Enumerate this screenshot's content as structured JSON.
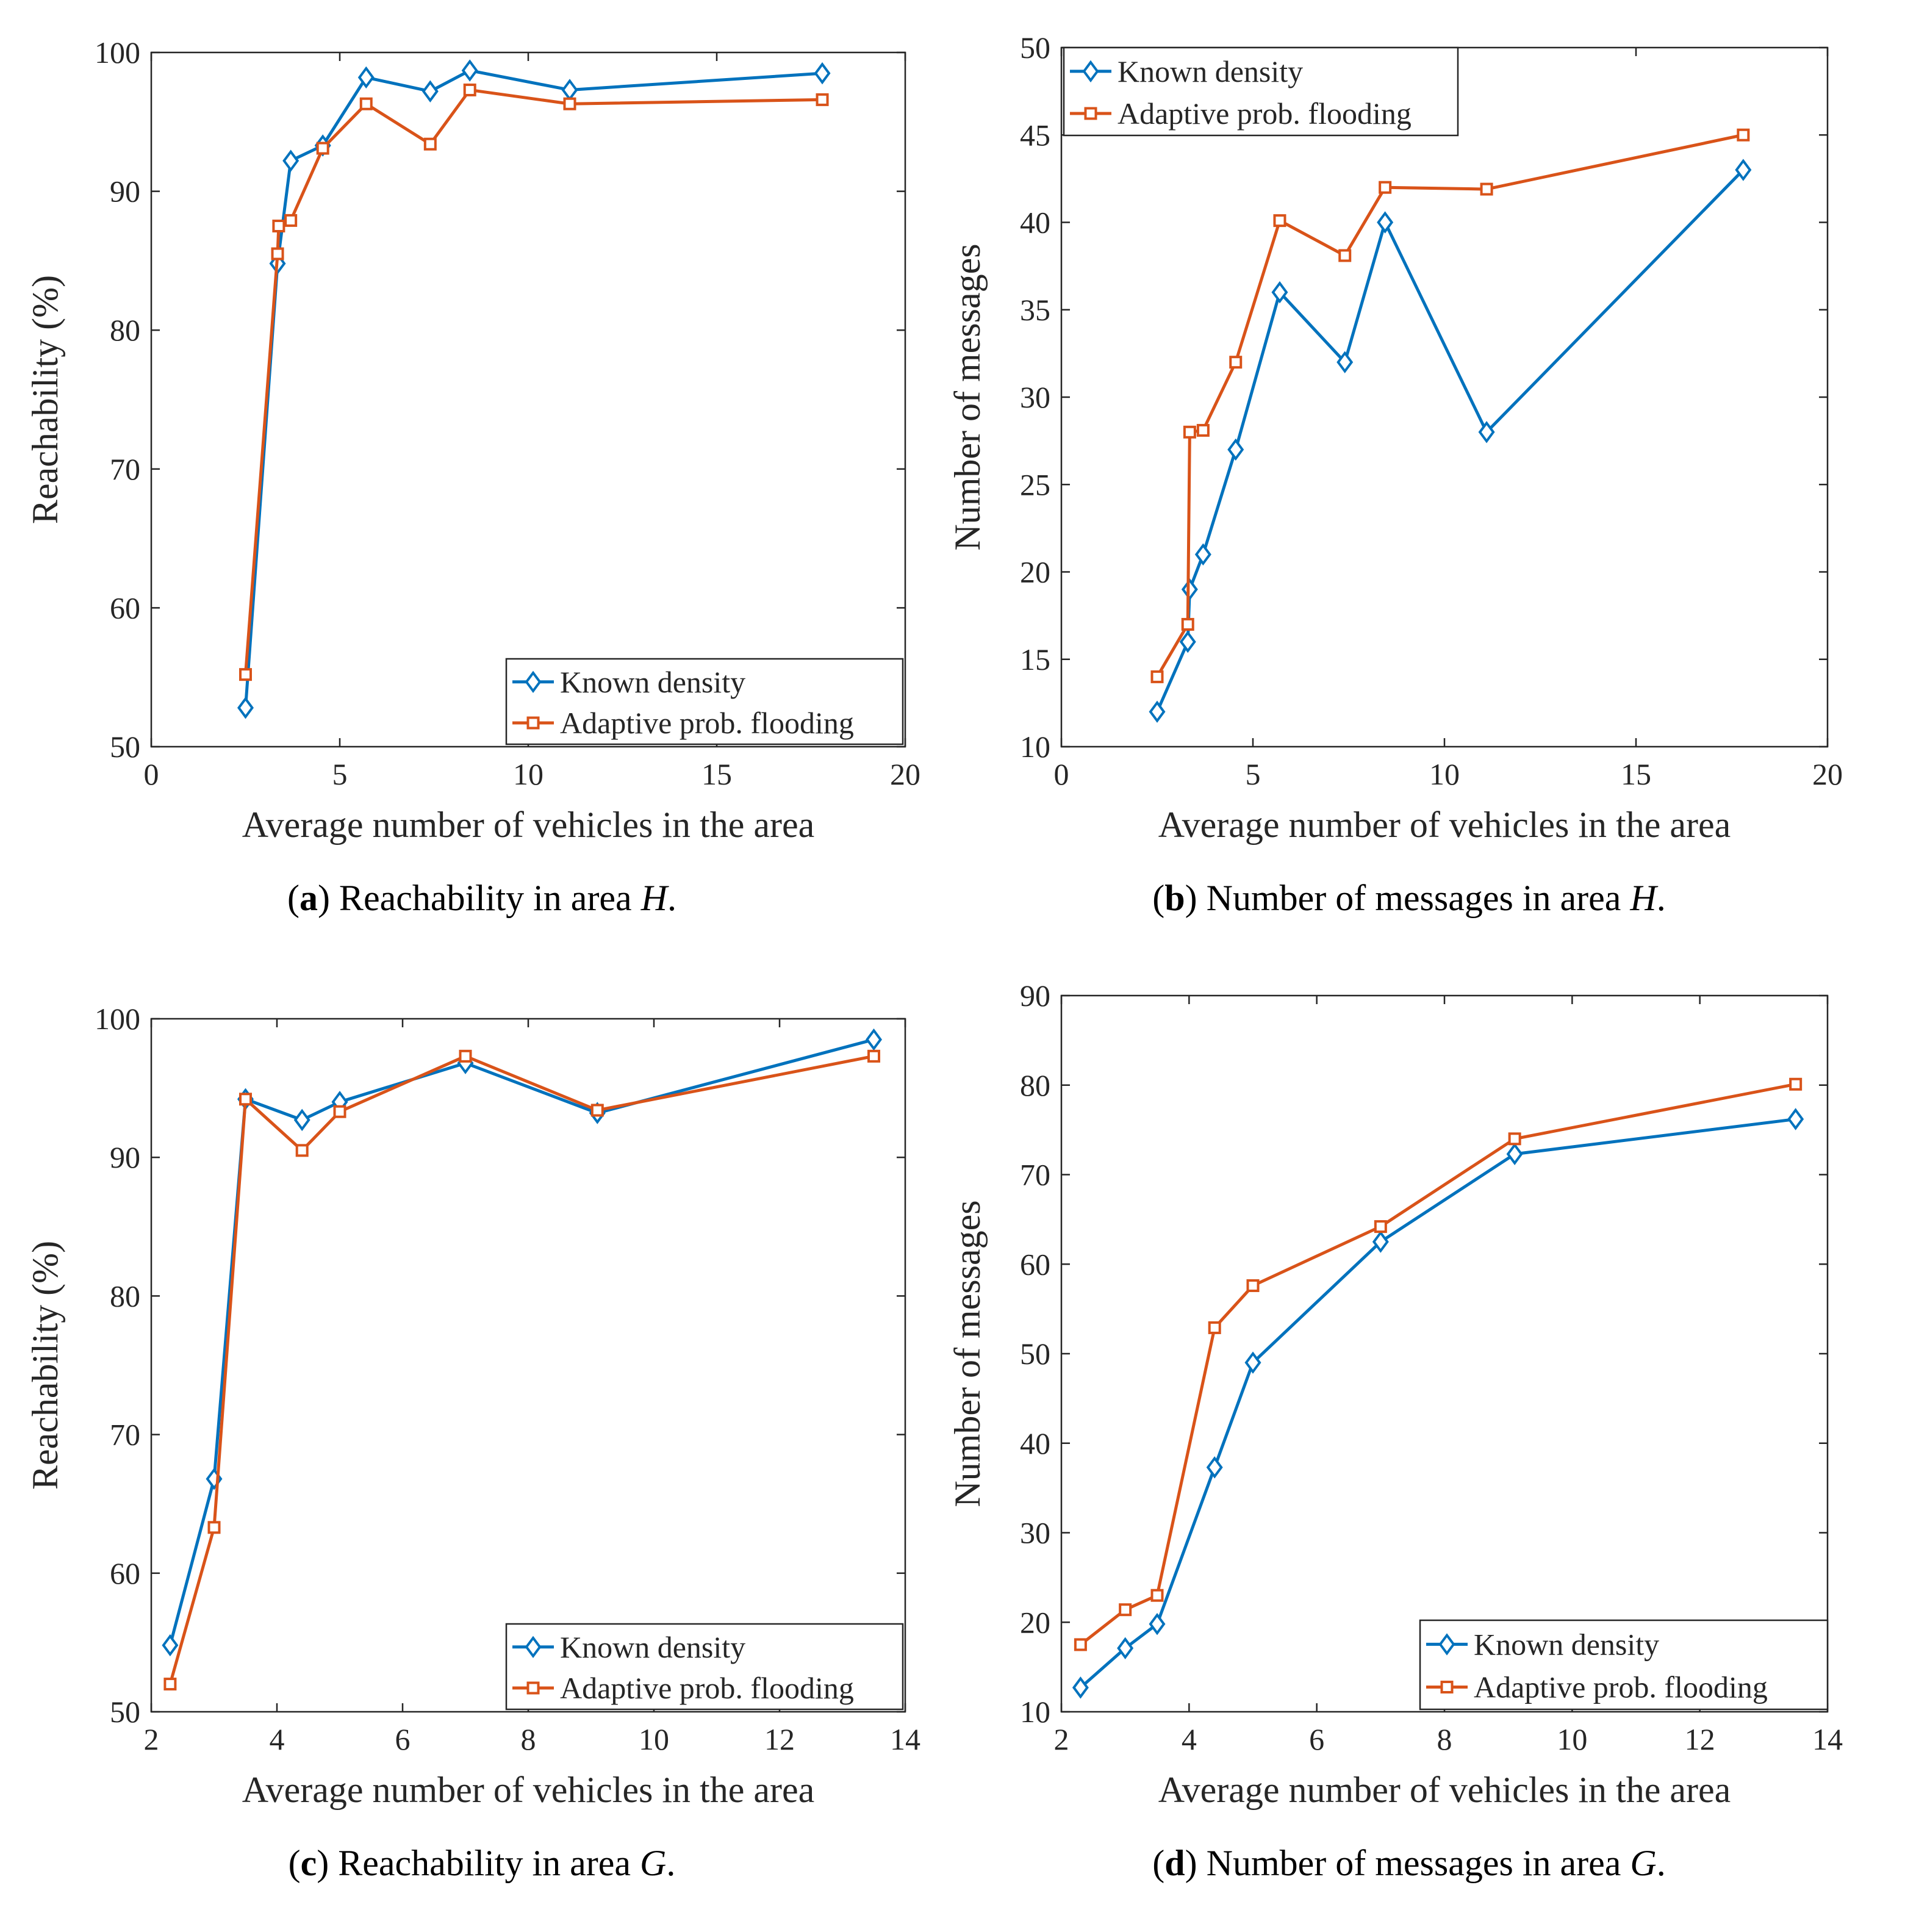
{
  "colors": {
    "known": "#0072BD",
    "adaptive": "#D95319",
    "axis": "#262626"
  },
  "chart_data": [
    {
      "id": "a",
      "type": "line",
      "caption": {
        "letter": "a",
        "text": "Reachability in area",
        "var": "H"
      },
      "xlabel": "Average number of vehicles in the area",
      "ylabel": "Reachability (%)",
      "xlim": [
        0,
        20
      ],
      "ylim": [
        50,
        100
      ],
      "xticks": [
        0,
        5,
        10,
        15,
        20
      ],
      "yticks": [
        50,
        60,
        70,
        80,
        90,
        100
      ],
      "xtick_labels": [
        "0",
        "5",
        "10",
        "15",
        "20"
      ],
      "ytick_labels": [
        "50",
        "60",
        "70",
        "80",
        "90",
        "100"
      ],
      "legend_position": "bottom-right",
      "series": [
        {
          "name": "Known density",
          "key": "known",
          "marker": "diamond",
          "x": [
            2.5,
            3.35,
            3.7,
            4.55,
            5.7,
            7.4,
            8.45,
            11.1,
            17.8
          ],
          "y": [
            52.8,
            84.8,
            92.2,
            93.3,
            98.2,
            97.2,
            98.7,
            97.3,
            98.5
          ]
        },
        {
          "name": "Adaptive prob. flooding",
          "key": "adaptive",
          "marker": "square",
          "x": [
            2.5,
            3.35,
            3.38,
            3.7,
            4.55,
            5.7,
            7.4,
            8.45,
            11.1,
            17.8
          ],
          "y": [
            55.2,
            85.5,
            87.5,
            87.9,
            93.1,
            96.3,
            93.4,
            97.3,
            96.3,
            96.6
          ]
        }
      ]
    },
    {
      "id": "b",
      "type": "line",
      "caption": {
        "letter": "b",
        "text": "Number of messages in area",
        "var": "H"
      },
      "xlabel": "Average number of vehicles in the area",
      "ylabel": "Number of messages",
      "xlim": [
        0,
        20
      ],
      "ylim": [
        10,
        50
      ],
      "xticks": [
        0,
        5,
        10,
        15,
        20
      ],
      "yticks": [
        10,
        15,
        20,
        25,
        30,
        35,
        40,
        45,
        50
      ],
      "xtick_labels": [
        "0",
        "5",
        "10",
        "15",
        "20"
      ],
      "ytick_labels": [
        "10",
        "15",
        "20",
        "25",
        "30",
        "35",
        "40",
        "45",
        "50"
      ],
      "legend_position": "top-left",
      "series": [
        {
          "name": "Known density",
          "key": "known",
          "marker": "diamond",
          "x": [
            2.5,
            3.3,
            3.35,
            3.7,
            4.55,
            5.7,
            7.4,
            8.45,
            11.1,
            17.8
          ],
          "y": [
            12,
            16,
            19,
            21,
            27,
            36,
            32,
            40,
            28,
            43
          ]
        },
        {
          "name": "Adaptive prob. flooding",
          "key": "adaptive",
          "marker": "square",
          "x": [
            2.5,
            3.3,
            3.35,
            3.7,
            4.55,
            5.7,
            7.4,
            8.45,
            11.1,
            17.8
          ],
          "y": [
            14,
            17,
            28,
            28.1,
            32,
            40.1,
            38.1,
            42,
            41.9,
            45
          ]
        }
      ]
    },
    {
      "id": "c",
      "type": "line",
      "caption": {
        "letter": "c",
        "text": "Reachability in area",
        "var": "G"
      },
      "xlabel": "Average number of vehicles in the area",
      "ylabel": "Reachability (%)",
      "xlim": [
        2,
        14
      ],
      "ylim": [
        50,
        100
      ],
      "xticks": [
        2,
        4,
        6,
        8,
        10,
        12,
        14
      ],
      "yticks": [
        50,
        60,
        70,
        80,
        90,
        100
      ],
      "xtick_labels": [
        "2",
        "4",
        "6",
        "8",
        "10",
        "12",
        "14"
      ],
      "ytick_labels": [
        "50",
        "60",
        "70",
        "80",
        "90",
        "100"
      ],
      "legend_position": "bottom-right",
      "series": [
        {
          "name": "Known density",
          "key": "known",
          "marker": "diamond",
          "x": [
            2.3,
            3.0,
            3.5,
            4.4,
            5.0,
            7.0,
            9.1,
            13.5
          ],
          "y": [
            54.8,
            66.8,
            94.2,
            92.7,
            94.0,
            96.8,
            93.2,
            98.5
          ]
        },
        {
          "name": "Adaptive prob. flooding",
          "key": "adaptive",
          "marker": "square",
          "x": [
            2.3,
            3.0,
            3.5,
            4.4,
            5.0,
            7.0,
            9.1,
            13.5
          ],
          "y": [
            52.0,
            63.3,
            94.2,
            90.5,
            93.3,
            97.3,
            93.4,
            97.3
          ]
        }
      ]
    },
    {
      "id": "d",
      "type": "line",
      "caption": {
        "letter": "d",
        "text": "Number of messages in area",
        "var": "G"
      },
      "xlabel": "Average number of vehicles in the area",
      "ylabel": "Number of messages",
      "xlim": [
        2,
        14
      ],
      "ylim": [
        10,
        90
      ],
      "xticks": [
        2,
        4,
        6,
        8,
        10,
        12,
        14
      ],
      "yticks": [
        10,
        20,
        30,
        40,
        50,
        60,
        70,
        80,
        90
      ],
      "xtick_labels": [
        "2",
        "4",
        "6",
        "8",
        "10",
        "12",
        "14"
      ],
      "ytick_labels": [
        "10",
        "20",
        "30",
        "40",
        "50",
        "60",
        "70",
        "80",
        "90"
      ],
      "legend_position": "bottom-right",
      "series": [
        {
          "name": "Known density",
          "key": "known",
          "marker": "diamond",
          "x": [
            2.3,
            3.0,
            3.5,
            4.4,
            5.0,
            7.0,
            9.1,
            13.5
          ],
          "y": [
            12.7,
            17.1,
            19.8,
            37.3,
            49.0,
            62.5,
            72.3,
            76.2
          ]
        },
        {
          "name": "Adaptive prob. flooding",
          "key": "adaptive",
          "marker": "square",
          "x": [
            2.3,
            3.0,
            3.5,
            4.4,
            5.0,
            7.0,
            9.1,
            13.5
          ],
          "y": [
            17.5,
            21.4,
            23.0,
            52.9,
            57.6,
            64.2,
            74.0,
            80.1
          ]
        }
      ]
    }
  ]
}
